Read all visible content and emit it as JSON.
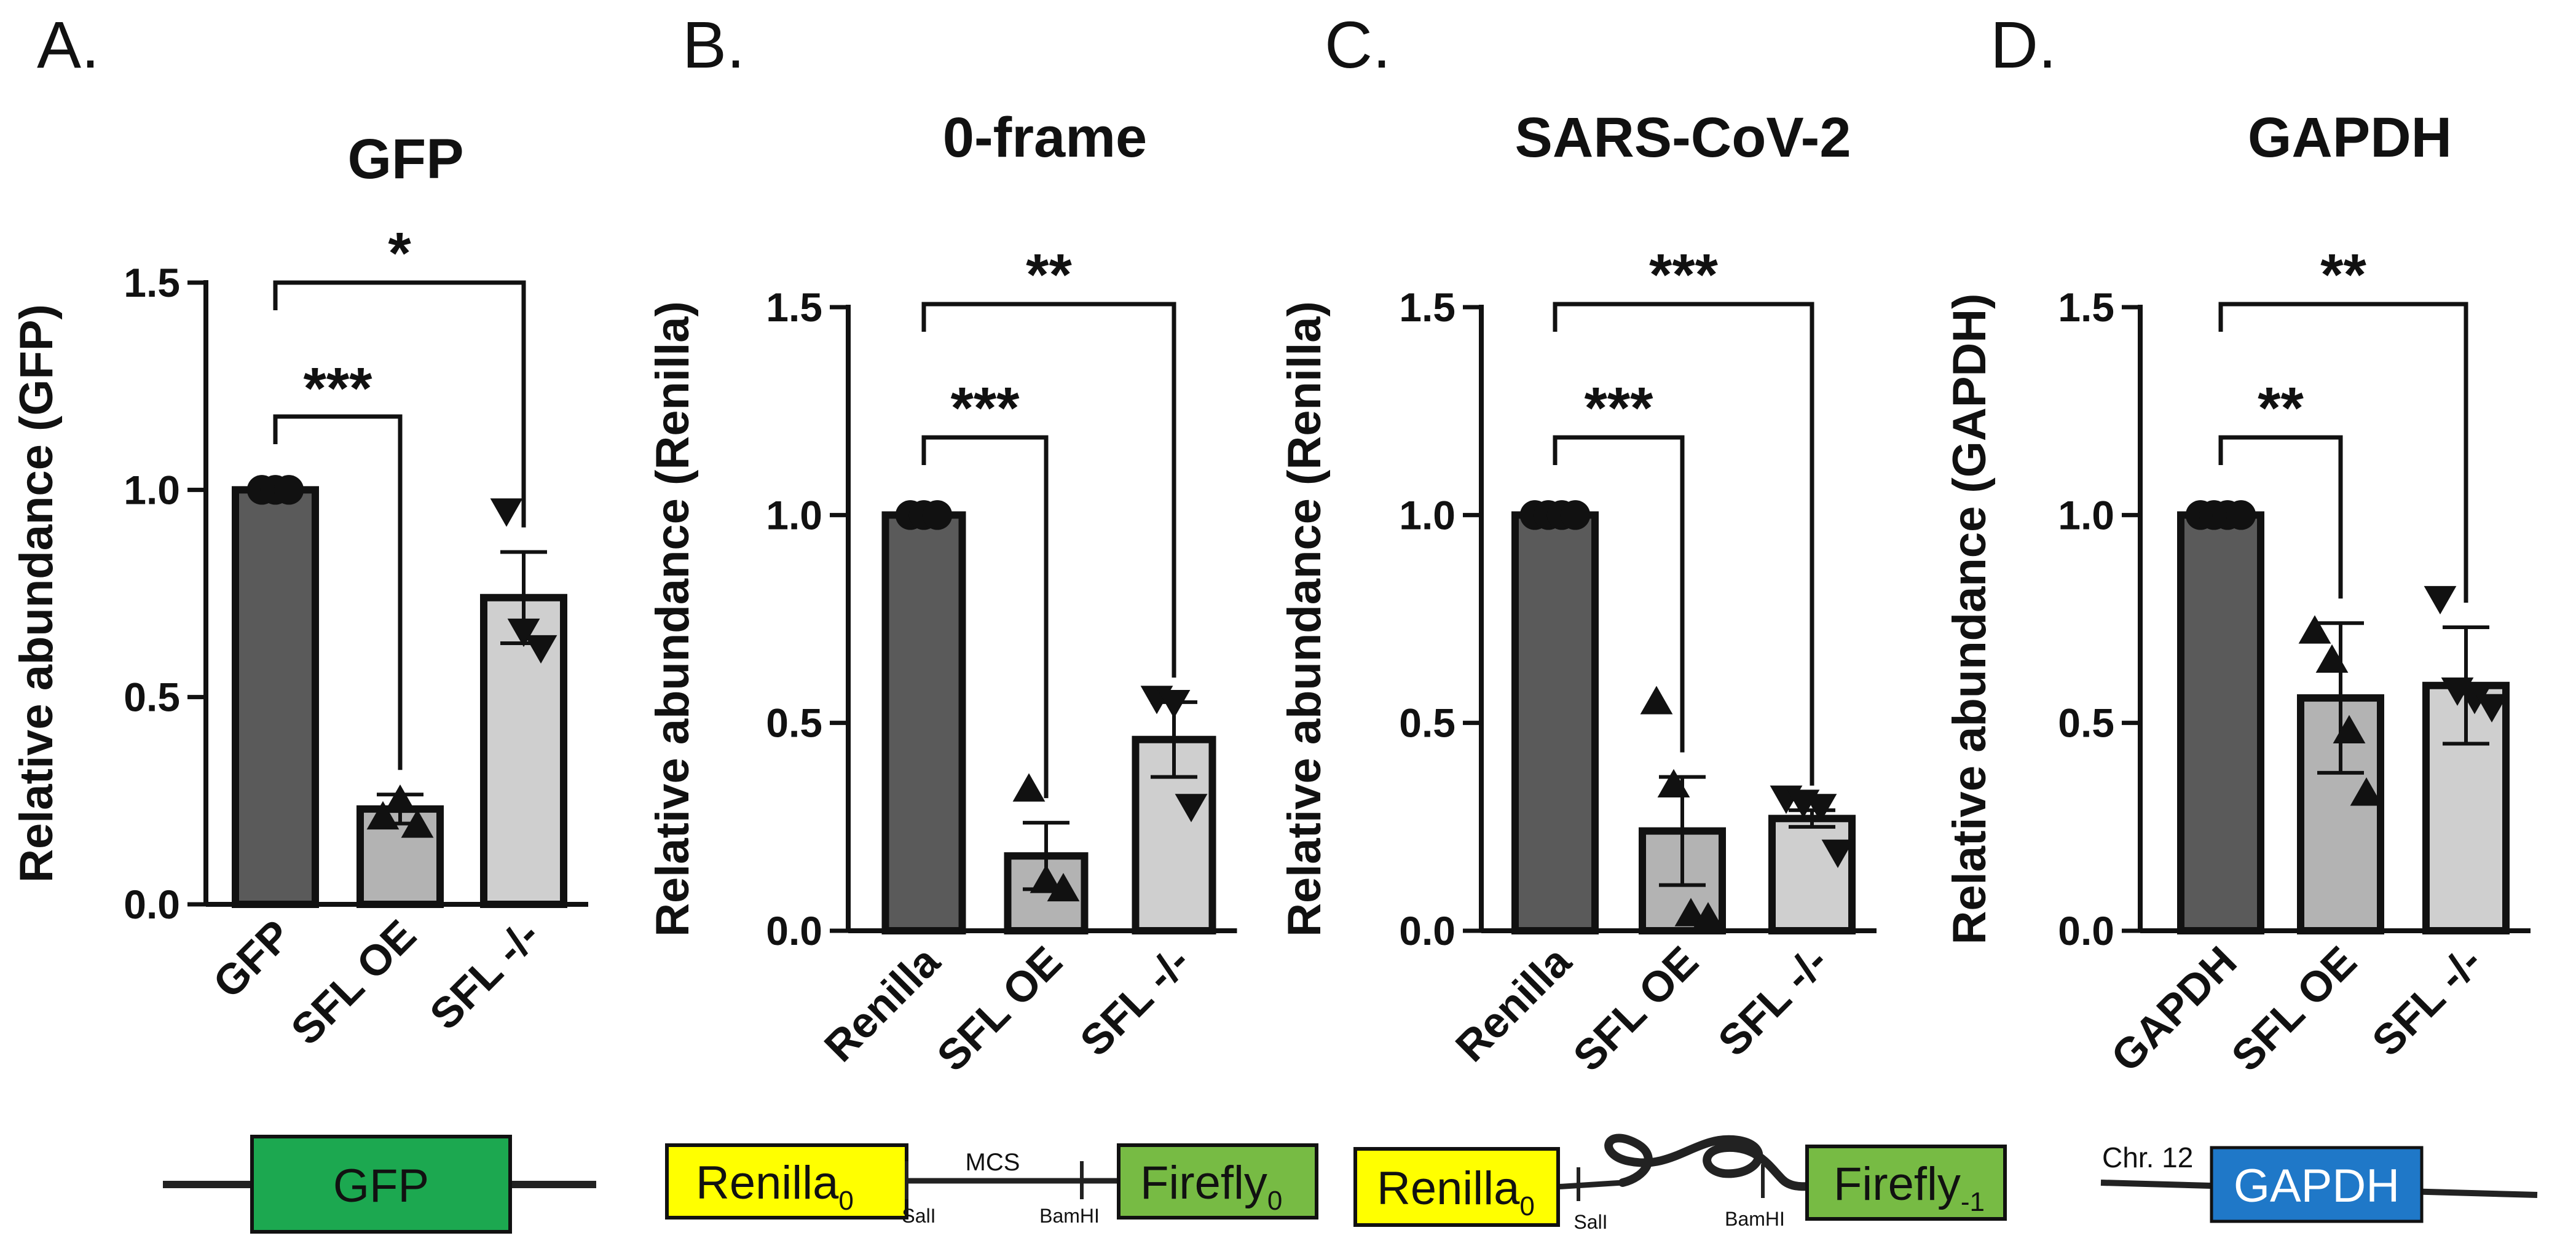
{
  "colors": {
    "dark_bar": "#5a5a5a",
    "mid_bar": "#b3b3b3",
    "light_bar": "#cfcfcf",
    "gfp_box": "#1ca850",
    "renilla_box": "#ffff00",
    "firefly_box": "#77bb44",
    "gapdh_box": "#1f78c8",
    "ink": "#111111"
  },
  "chart_data": [
    {
      "type": "bar",
      "panel": "A.",
      "title": "GFP",
      "ylabel": "Relative abundance (GFP)",
      "ylim": [
        0,
        1.5
      ],
      "yticks": [
        "0.0",
        "0.5",
        "1.0",
        "1.5"
      ],
      "categories": [
        "GFP",
        "SFL OE",
        "SFL -/-"
      ],
      "values": [
        1.0,
        0.23,
        0.74
      ],
      "errors": [
        0.0,
        0.035,
        0.11
      ],
      "points": [
        [
          1.0,
          1.0,
          1.0
        ],
        [
          0.21,
          0.25,
          0.19
        ],
        [
          0.95,
          0.66,
          0.62
        ]
      ],
      "markers": [
        "circle",
        "triangle-up",
        "triangle-down"
      ],
      "significance": [
        {
          "from": 0,
          "to": 1,
          "label": "***"
        },
        {
          "from": 0,
          "to": 2,
          "label": "*"
        }
      ]
    },
    {
      "type": "bar",
      "panel": "B.",
      "title": "0-frame",
      "ylabel": "Relative abundance (Renilla)",
      "ylim": [
        0,
        1.5
      ],
      "yticks": [
        "0.0",
        "0.5",
        "1.0",
        "1.5"
      ],
      "categories": [
        "Renilla",
        "SFL OE",
        "SFL -/-"
      ],
      "values": [
        1.0,
        0.18,
        0.46
      ],
      "errors": [
        0.0,
        0.08,
        0.09
      ],
      "points": [
        [
          1.0,
          1.0,
          1.0
        ],
        [
          0.34,
          0.12,
          0.1
        ],
        [
          0.56,
          0.55,
          0.3
        ]
      ],
      "markers": [
        "circle",
        "triangle-up",
        "triangle-down"
      ],
      "significance": [
        {
          "from": 0,
          "to": 1,
          "label": "***"
        },
        {
          "from": 0,
          "to": 2,
          "label": "**"
        }
      ]
    },
    {
      "type": "bar",
      "panel": "C.",
      "title": "SARS-CoV-2",
      "ylabel": "Relative abundance (Renilla)",
      "ylim": [
        0,
        1.5
      ],
      "yticks": [
        "0.0",
        "0.5",
        "1.0",
        "1.5"
      ],
      "categories": [
        "Renilla",
        "SFL OE",
        "SFL -/-"
      ],
      "values": [
        1.0,
        0.24,
        0.27
      ],
      "errors": [
        0.0,
        0.13,
        0.02
      ],
      "points": [
        [
          1.0,
          1.0,
          1.0,
          1.0
        ],
        [
          0.55,
          0.35,
          0.04,
          0.03
        ],
        [
          0.32,
          0.31,
          0.3,
          0.19
        ]
      ],
      "markers": [
        "circle",
        "triangle-up",
        "triangle-down"
      ],
      "significance": [
        {
          "from": 0,
          "to": 1,
          "label": "***"
        },
        {
          "from": 0,
          "to": 2,
          "label": "***"
        }
      ]
    },
    {
      "type": "bar",
      "panel": "D.",
      "title": "GAPDH",
      "ylabel": "Relative abundance (GAPDH)",
      "ylim": [
        0,
        1.5
      ],
      "yticks": [
        "0.0",
        "0.5",
        "1.0",
        "1.5"
      ],
      "categories": [
        "GAPDH",
        "SFL OE",
        "SFL -/-"
      ],
      "values": [
        1.0,
        0.56,
        0.59
      ],
      "errors": [
        0.0,
        0.18,
        0.14
      ],
      "points": [
        [
          1.0,
          1.0,
          1.0,
          1.0
        ],
        [
          0.72,
          0.65,
          0.48,
          0.33
        ],
        [
          0.8,
          0.58,
          0.56,
          0.54
        ]
      ],
      "markers": [
        "circle",
        "triangle-up",
        "triangle-down"
      ],
      "significance": [
        {
          "from": 0,
          "to": 1,
          "label": "**"
        },
        {
          "from": 0,
          "to": 2,
          "label": "**"
        }
      ]
    }
  ],
  "constructs": {
    "a": {
      "box_label": "GFP"
    },
    "b": {
      "left_label": "Renilla",
      "left_sub": "0",
      "right_label": "Firefly",
      "right_sub": "0",
      "site_left": "SalI",
      "site_right": "BamHI",
      "region": "MCS"
    },
    "c": {
      "left_label": "Renilla",
      "left_sub": "0",
      "right_label": "Firefly",
      "right_sub": "-1",
      "site_left": "SalI",
      "site_right": "BamHI"
    },
    "d": {
      "box_label": "GAPDH",
      "chr": "Chr. 12"
    }
  }
}
